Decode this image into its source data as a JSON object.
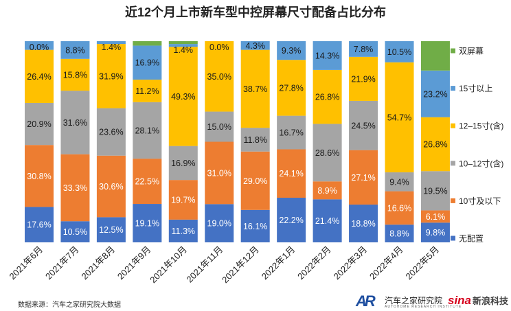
{
  "chart_data": {
    "type": "bar",
    "stacked": true,
    "title": "近12个月上市新车型中控屏幕尺寸配备占比分布",
    "categories": [
      "2021年6月",
      "2021年7月",
      "2021年8月",
      "2021年9月",
      "2021年10月",
      "2021年11月",
      "2021年12月",
      "2022年1月",
      "2022年2月",
      "2022年3月",
      "2022年4月",
      "2022年5月"
    ],
    "series": [
      {
        "name": "无配置",
        "color": "#4472c4",
        "values": [
          17.6,
          10.5,
          12.5,
          19.1,
          11.3,
          19.0,
          16.1,
          22.2,
          21.4,
          18.8,
          8.8,
          9.8
        ],
        "labels": [
          "17.6%",
          "10.5%",
          "12.5%",
          "19.1%",
          "11.3%",
          "19.0%",
          "16.1%",
          "22.2%",
          "21.4%",
          "18.8%",
          "8.8%",
          "9.8%"
        ]
      },
      {
        "name": "10寸及以下",
        "color": "#ed7d31",
        "values": [
          30.8,
          33.3,
          30.6,
          22.5,
          19.7,
          31.0,
          29.0,
          24.1,
          8.9,
          27.1,
          16.6,
          6.1
        ],
        "labels": [
          "30.8%",
          "33.3%",
          "30.6%",
          "22.5%",
          "19.7%",
          "31.0%",
          "29.0%",
          "24.1%",
          "8.9%",
          "27.1%",
          "16.6%",
          "6.1%"
        ]
      },
      {
        "name": "10–12寸(含)",
        "color": "#a5a5a5",
        "values": [
          20.9,
          31.6,
          23.6,
          28.1,
          16.9,
          15.0,
          11.8,
          16.7,
          28.6,
          24.5,
          9.4,
          19.5
        ],
        "labels": [
          "20.9%",
          "31.6%",
          "23.6%",
          "28.1%",
          "16.9%",
          "15.0%",
          "11.8%",
          "16.7%",
          "28.6%",
          "24.5%",
          "9.4%",
          "19.5%"
        ]
      },
      {
        "name": "12–15寸(含)",
        "color": "#ffc000",
        "values": [
          26.4,
          15.8,
          31.9,
          11.2,
          49.3,
          35.0,
          38.7,
          27.8,
          26.8,
          21.9,
          54.7,
          26.8
        ],
        "labels": [
          "26.4%",
          "15.8%",
          "31.9%",
          "11.2%",
          "49.3%",
          "35.0%",
          "38.7%",
          "27.8%",
          "26.8%",
          "21.9%",
          "54.7%",
          "26.8%"
        ]
      },
      {
        "name": "15寸以上",
        "color": "#5b9bd5",
        "values": [
          4.3,
          8.8,
          1.4,
          16.9,
          1.4,
          0.0,
          4.3,
          9.3,
          14.3,
          7.8,
          10.5,
          23.2
        ],
        "labels": [
          "",
          "8.8%",
          "1.4%",
          "16.9%",
          "1.4%",
          "0.0%",
          "4.3%",
          "9.3%",
          "14.3%",
          "7.8%",
          "10.5%",
          "23.2%"
        ]
      },
      {
        "name": "双屏幕",
        "color": "#70ad47",
        "values": [
          0.0,
          0.0,
          0.0,
          2.2,
          1.4,
          0.0,
          0.0,
          0.0,
          0.0,
          0.0,
          0.0,
          14.6
        ],
        "labels": [
          "0.0%",
          "",
          "",
          "",
          "",
          "",
          "",
          "",
          "",
          "",
          "",
          ""
        ]
      }
    ],
    "legend_position": "right",
    "ylim": [
      0,
      100
    ],
    "grid": false
  },
  "source": "数据来源：汽车之家研究院大数据",
  "brands": {
    "autohome_mark": "AR",
    "autohome_cn": "汽车之家研究院",
    "autohome_en": "AUTOHOME RESEARCH INSTITUTE",
    "sina_logo": "sina",
    "sina_cn": "新浪科技"
  }
}
